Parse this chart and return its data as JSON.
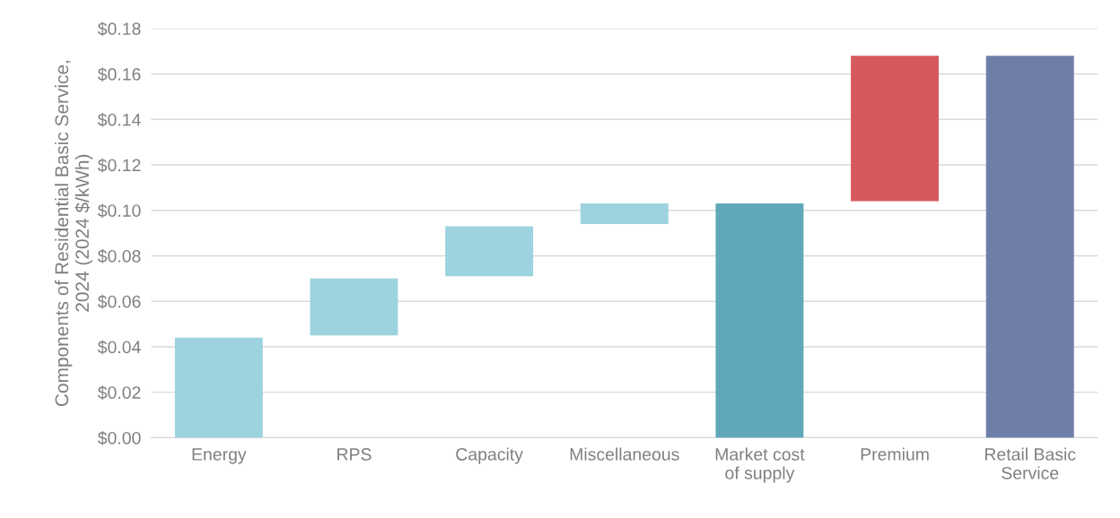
{
  "chart_data": {
    "type": "bar",
    "ylabel": "Components of Residential Basic Service,\n2024 (2024 $/kWh)",
    "categories": [
      "Energy",
      "RPS",
      "Capacity",
      "Miscellaneous",
      "Market cost\nof supply",
      "Premium",
      "Retail Basic\nService"
    ],
    "values": [
      0.044,
      0.025,
      0.022,
      0.009,
      0.103,
      0.064,
      0.168
    ],
    "base": [
      0,
      0.045,
      0.071,
      0.094,
      0,
      0.104,
      0
    ],
    "colors": [
      "#9dd3de",
      "#9dd3de",
      "#9dd3de",
      "#9dd3de",
      "#5fa8ba",
      "#d55a5e",
      "#6f7ea7"
    ],
    "ylim": [
      0,
      0.18
    ],
    "yticks": [
      {
        "value": 0,
        "label": "$0.00"
      },
      {
        "value": 0.02,
        "label": "$0.02"
      },
      {
        "value": 0.04,
        "label": "$0.04"
      },
      {
        "value": 0.06,
        "label": "$0.06"
      },
      {
        "value": 0.08,
        "label": "$0.08"
      },
      {
        "value": 0.1,
        "label": "$0.10"
      },
      {
        "value": 0.12,
        "label": "$0.12"
      },
      {
        "value": 0.14,
        "label": "$0.14"
      },
      {
        "value": 0.16,
        "label": "$0.16"
      },
      {
        "value": 0.18,
        "label": "$0.18"
      }
    ],
    "grid": "y"
  }
}
